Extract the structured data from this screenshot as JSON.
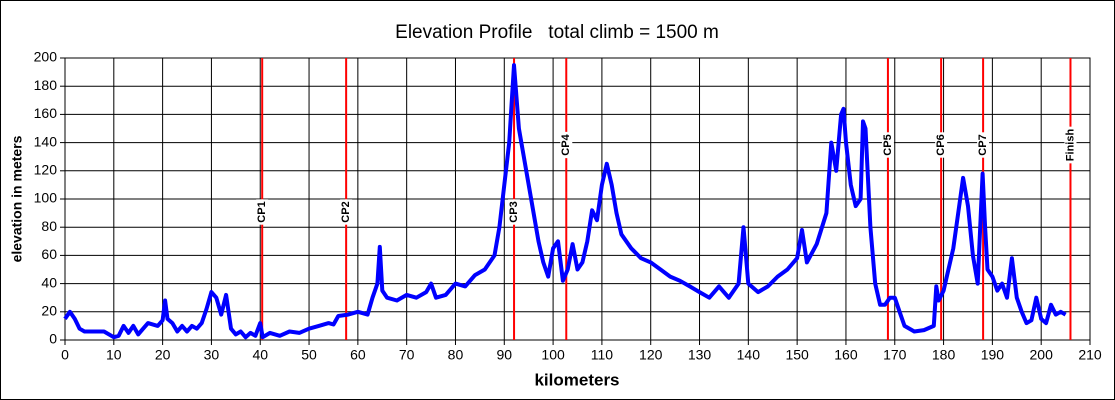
{
  "chart_data": {
    "type": "line",
    "title": "Elevation Profile   total climb = 1500 m",
    "x_label": "kilometers",
    "y_label": "elevation in meters",
    "xlim": [
      0,
      210
    ],
    "xticks": [
      0,
      10,
      20,
      30,
      40,
      50,
      60,
      70,
      80,
      90,
      100,
      110,
      120,
      130,
      140,
      150,
      160,
      170,
      180,
      190,
      200,
      210
    ],
    "ylim": [
      0,
      200
    ],
    "yticks": [
      0,
      20,
      40,
      60,
      80,
      100,
      120,
      140,
      160,
      180,
      200
    ],
    "grid": true,
    "series": [
      {
        "name": "elevation",
        "color": "#0000ff",
        "x": [
          0,
          1,
          2,
          3,
          4,
          8,
          10,
          11,
          12,
          13,
          14,
          15,
          16,
          17,
          19,
          20,
          20.5,
          21,
          22,
          23,
          24,
          25,
          26,
          27,
          28,
          29,
          30,
          31,
          32,
          33,
          34,
          35,
          36,
          37,
          38,
          39,
          40,
          40.5,
          42,
          44,
          46,
          48,
          50,
          52,
          54,
          55,
          56,
          58,
          60,
          62,
          63,
          64,
          64.5,
          65,
          66,
          68,
          70,
          72,
          74,
          75,
          76,
          78,
          80,
          82,
          84,
          86,
          88,
          89,
          90,
          91,
          92,
          93,
          94,
          95,
          96,
          97,
          98,
          99,
          100,
          101,
          102,
          103,
          104,
          105,
          106,
          107,
          108,
          109,
          110,
          111,
          112,
          113,
          114,
          116,
          118,
          120,
          122,
          124,
          126,
          128,
          130,
          132,
          134,
          136,
          138,
          139,
          140,
          142,
          144,
          146,
          148,
          150,
          151,
          152,
          154,
          156,
          157,
          158,
          159,
          159.5,
          160,
          161,
          162,
          163,
          163.5,
          164,
          165,
          166,
          167,
          168,
          169,
          170,
          171,
          172,
          174,
          176,
          178,
          178.5,
          179,
          180,
          182,
          183,
          184,
          185,
          186,
          187,
          188,
          188.5,
          189,
          190,
          191,
          192,
          193,
          194,
          195,
          196,
          197,
          198,
          199,
          200,
          201,
          202,
          203,
          204,
          205
        ],
        "values": [
          15,
          20,
          15,
          8,
          6,
          6,
          2,
          3,
          10,
          5,
          10,
          4,
          8,
          12,
          10,
          14,
          28,
          15,
          12,
          6,
          10,
          6,
          10,
          8,
          12,
          22,
          34,
          30,
          18,
          32,
          8,
          4,
          6,
          2,
          5,
          3,
          12,
          2,
          5,
          3,
          6,
          5,
          8,
          10,
          12,
          11,
          17,
          18,
          20,
          18,
          30,
          40,
          66,
          35,
          30,
          28,
          32,
          30,
          34,
          40,
          30,
          32,
          40,
          38,
          46,
          50,
          60,
          80,
          110,
          140,
          195,
          150,
          130,
          110,
          90,
          70,
          55,
          45,
          65,
          70,
          42,
          50,
          68,
          50,
          55,
          70,
          92,
          85,
          110,
          125,
          110,
          90,
          75,
          65,
          58,
          55,
          50,
          45,
          42,
          38,
          34,
          30,
          38,
          30,
          40,
          80,
          40,
          34,
          38,
          45,
          50,
          58,
          78,
          55,
          68,
          90,
          140,
          120,
          160,
          164,
          140,
          110,
          95,
          100,
          155,
          150,
          80,
          40,
          25,
          25,
          30,
          30,
          20,
          10,
          6,
          7,
          10,
          38,
          28,
          35,
          65,
          90,
          115,
          95,
          60,
          40,
          118,
          80,
          50,
          45,
          35,
          40,
          30,
          58,
          30,
          20,
          12,
          14,
          30,
          15,
          12,
          25,
          18,
          20,
          18
        ]
      }
    ],
    "checkpoints": [
      {
        "label": "CP1",
        "x": 40.4,
        "color": "#ff0000"
      },
      {
        "label": "CP2",
        "x": 57.6,
        "color": "#ff0000"
      },
      {
        "label": "CP3",
        "x": 92,
        "color": "#ff0000"
      },
      {
        "label": "CP4",
        "x": 102.7,
        "color": "#ff0000"
      },
      {
        "label": "CP5",
        "x": 168.6,
        "color": "#ff0000"
      },
      {
        "label": "CP6",
        "x": 179.5,
        "color": "#ff0000"
      },
      {
        "label": "CP7",
        "x": 188.1,
        "color": "#ff0000"
      },
      {
        "label": "Finish",
        "x": 206,
        "color": "#ff0000"
      }
    ]
  }
}
